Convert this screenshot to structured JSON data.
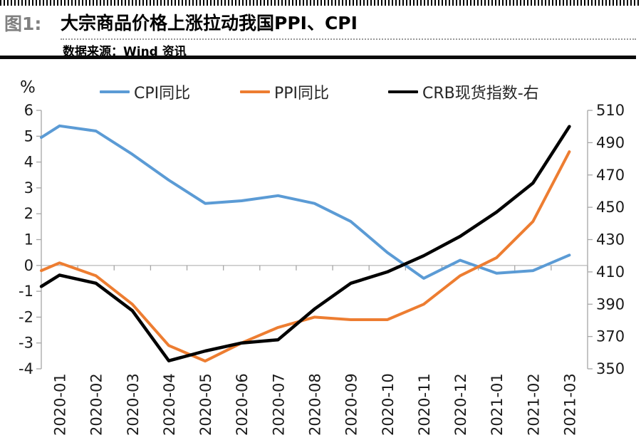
{
  "figure": {
    "tag": "图1:",
    "title": "大宗商品价格上涨拉动我国PPI、CPI",
    "source": "数据来源：Wind 资讯"
  },
  "chart_data": {
    "type": "line",
    "unit_label": "%",
    "legend_position": "top",
    "grid": "zero-baseline-only",
    "categories": [
      "2020-01",
      "2020-02",
      "2020-03",
      "2020-04",
      "2020-05",
      "2020-06",
      "2020-07",
      "2020-08",
      "2020-09",
      "2020-10",
      "2020-11",
      "2020-12",
      "2021-01",
      "2021-02",
      "2021-03"
    ],
    "series": [
      {
        "name": "CPI同比",
        "color": "#5B9BD5",
        "axis": "left",
        "left_edge_value": 4.95,
        "values": [
          5.4,
          5.2,
          4.3,
          3.3,
          2.4,
          2.5,
          2.7,
          2.4,
          1.7,
          0.5,
          -0.5,
          0.2,
          -0.3,
          -0.2,
          0.4
        ]
      },
      {
        "name": "PPI同比",
        "color": "#ED7D31",
        "axis": "left",
        "left_edge_value": -0.2,
        "values": [
          0.1,
          -0.4,
          -1.5,
          -3.1,
          -3.7,
          -3.0,
          -2.4,
          -2.0,
          -2.1,
          -2.1,
          -1.5,
          -0.4,
          0.3,
          1.7,
          4.4
        ]
      },
      {
        "name": "CRB现货指数-右",
        "color": "#000000",
        "axis": "right",
        "left_edge_value": 401,
        "values": [
          408,
          403,
          386,
          355,
          361,
          366,
          368,
          387,
          403,
          410,
          420,
          432,
          447,
          465,
          500
        ]
      }
    ],
    "left_axis": {
      "label": "%",
      "min": -4,
      "max": 6,
      "ticks": [
        6,
        5,
        4,
        3,
        2,
        1,
        0,
        -1,
        -2,
        -3,
        -4
      ]
    },
    "right_axis": {
      "min": 350,
      "max": 510,
      "ticks": [
        510,
        490,
        470,
        450,
        430,
        410,
        390,
        370,
        350
      ]
    }
  }
}
